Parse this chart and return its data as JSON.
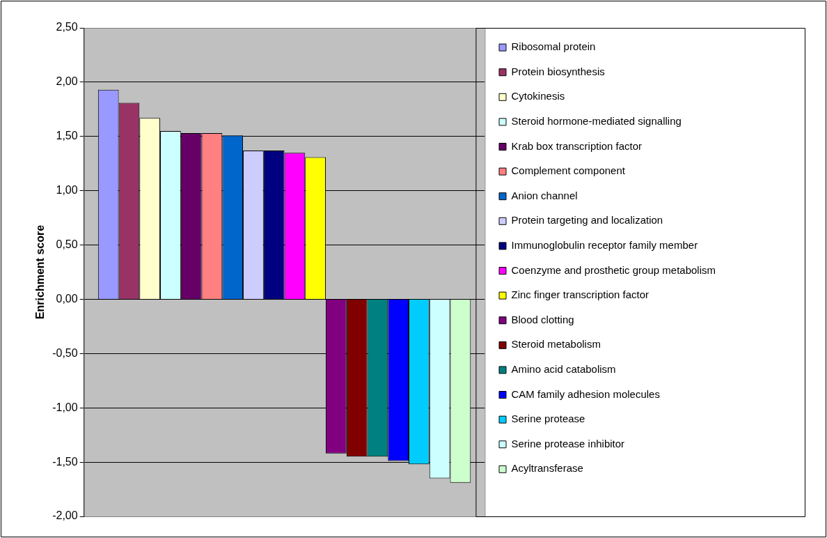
{
  "chart_data": {
    "type": "bar",
    "ylabel": "Enrichment score",
    "categories": [
      null
    ],
    "series": [
      {
        "name": "Ribosomal protein",
        "color": "#9999ff",
        "values": [
          1.93
        ]
      },
      {
        "name": "Protein biosynthesis",
        "color": "#993366",
        "values": [
          1.81
        ]
      },
      {
        "name": "Cytokinesis",
        "color": "#ffffcc",
        "values": [
          1.67
        ]
      },
      {
        "name": "Steroid hormone-mediated signalling",
        "color": "#ccffff",
        "values": [
          1.55
        ]
      },
      {
        "name": "Krab box transcription factor",
        "color": "#660066",
        "values": [
          1.53
        ]
      },
      {
        "name": "Complement component",
        "color": "#ff8080",
        "values": [
          1.53
        ]
      },
      {
        "name": "Anion channel",
        "color": "#0066cc",
        "values": [
          1.51
        ]
      },
      {
        "name": "Protein targeting and localization",
        "color": "#ccccff",
        "values": [
          1.37
        ]
      },
      {
        "name": "Immunoglobulin receptor family member",
        "color": "#000080",
        "values": [
          1.37
        ]
      },
      {
        "name": "Coenzyme and prosthetic group metabolism",
        "color": "#ff00ff",
        "values": [
          1.35
        ]
      },
      {
        "name": "Zinc finger transcription factor",
        "color": "#ffff00",
        "values": [
          1.31
        ]
      },
      {
        "name": "Blood clotting",
        "color": "#800080",
        "values": [
          -1.42
        ]
      },
      {
        "name": "Steroid metabolism",
        "color": "#800000",
        "values": [
          -1.45
        ]
      },
      {
        "name": "Amino acid catabolism",
        "color": "#008080",
        "values": [
          -1.45
        ]
      },
      {
        "name": "CAM family adhesion molecules",
        "color": "#0000ff",
        "values": [
          -1.49
        ]
      },
      {
        "name": "Serine protease",
        "color": "#00ccff",
        "values": [
          -1.52
        ]
      },
      {
        "name": "Serine protease inhibitor",
        "color": "#ccffff",
        "values": [
          -1.65
        ]
      },
      {
        "name": "Acyltransferase",
        "color": "#ccffcc",
        "values": [
          -1.69
        ]
      }
    ],
    "ylim": [
      -2,
      2.5
    ],
    "yticks": [
      {
        "value": -2,
        "label": "-2,00"
      },
      {
        "value": -1.5,
        "label": "-1,50"
      },
      {
        "value": -1,
        "label": "-1,00"
      },
      {
        "value": -0.5,
        "label": "-0,50"
      },
      {
        "value": 0,
        "label": "0,00"
      },
      {
        "value": 0.5,
        "label": "0,50"
      },
      {
        "value": 1,
        "label": "1,00"
      },
      {
        "value": 1.5,
        "label": "1,50"
      },
      {
        "value": 2,
        "label": "2,00"
      },
      {
        "value": 2.5,
        "label": "2,50"
      }
    ],
    "grid": "y",
    "legend": "right",
    "tick_labels": "y"
  }
}
